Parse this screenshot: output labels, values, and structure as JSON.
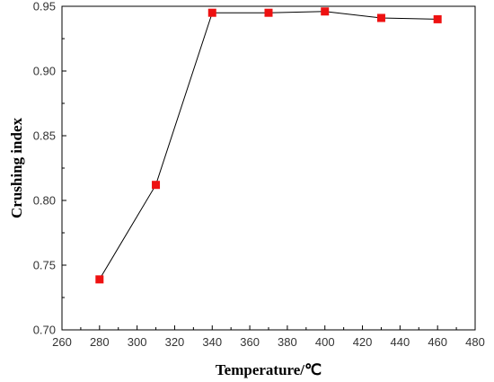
{
  "chart_data": {
    "type": "line",
    "xlabel": "Temperature/℃",
    "ylabel": "Crushing index",
    "xlim": [
      260,
      480
    ],
    "ylim": [
      0.7,
      0.95
    ],
    "x_ticks": [
      "260",
      "280",
      "300",
      "320",
      "340",
      "360",
      "380",
      "400",
      "420",
      "440",
      "460",
      "480"
    ],
    "y_ticks": [
      "0.70",
      "0.75",
      "0.80",
      "0.85",
      "0.90",
      "0.95"
    ],
    "grid": false,
    "series": [
      {
        "x": [
          280,
          310,
          340,
          370,
          400,
          430,
          460
        ],
        "y": [
          0.739,
          0.812,
          0.945,
          0.945,
          0.946,
          0.941,
          0.94
        ],
        "marker": "square",
        "marker_color": "#ee1111",
        "line_color": "#000000"
      }
    ]
  }
}
